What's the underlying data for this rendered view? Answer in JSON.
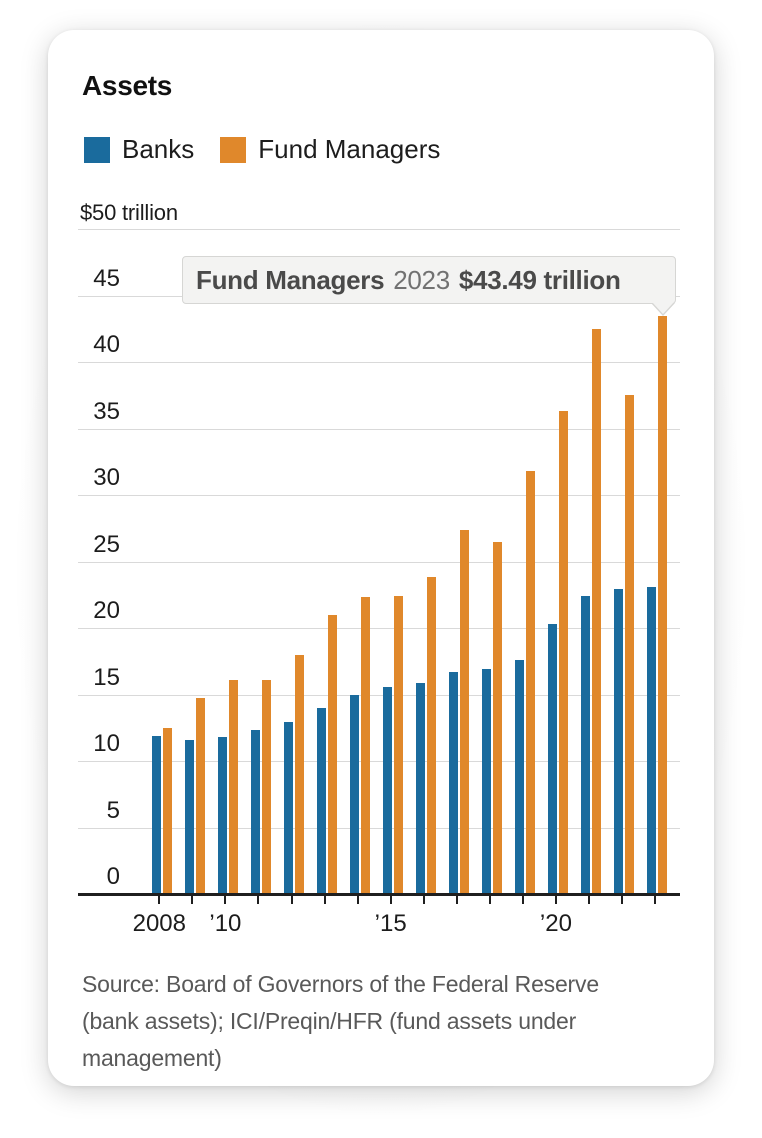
{
  "header": {
    "title": "Assets"
  },
  "legend": [
    {
      "label": "Banks",
      "color": "#1a6b9d"
    },
    {
      "label": "Fund Managers",
      "color": "#e0882b"
    }
  ],
  "y_axis": {
    "top_label": "$50 trillion",
    "ticks": [
      0,
      5,
      10,
      15,
      20,
      25,
      30,
      35,
      40,
      45
    ]
  },
  "x_axis": {
    "labels": [
      {
        "text": "2008",
        "year_index": 0
      },
      {
        "text": "’10",
        "year_index": 2
      },
      {
        "text": "’15",
        "year_index": 7
      },
      {
        "text": "’20",
        "year_index": 12
      }
    ]
  },
  "tooltip": {
    "series": "Fund Managers",
    "year": "2023",
    "value": "$43.49 trillion"
  },
  "source": "Source: Board of Governors of the Federal Reserve (bank assets); ICI/Preqin/HFR (fund assets under management)",
  "chart_data": {
    "type": "bar",
    "title": "Assets",
    "ylabel": "$ trillion",
    "ylim": [
      0,
      50
    ],
    "grid": true,
    "legend_position": "top",
    "categories": [
      2008,
      2009,
      2010,
      2011,
      2012,
      2013,
      2014,
      2015,
      2016,
      2017,
      2018,
      2019,
      2020,
      2021,
      2022,
      2023
    ],
    "series": [
      {
        "name": "Banks",
        "color": "#1a6b9d",
        "values": [
          11.9,
          11.6,
          11.8,
          12.3,
          12.9,
          14.0,
          15.0,
          15.6,
          15.9,
          16.7,
          16.9,
          17.6,
          20.3,
          22.4,
          22.9,
          23.1
        ]
      },
      {
        "name": "Fund Managers",
        "color": "#e0882b",
        "values": [
          12.5,
          14.7,
          16.1,
          16.1,
          18.0,
          21.0,
          22.3,
          22.4,
          23.8,
          27.4,
          26.5,
          31.8,
          36.3,
          42.5,
          37.5,
          43.49
        ]
      }
    ],
    "highlighted_point": {
      "series": "Fund Managers",
      "category": 2023,
      "value": 43.49
    }
  }
}
